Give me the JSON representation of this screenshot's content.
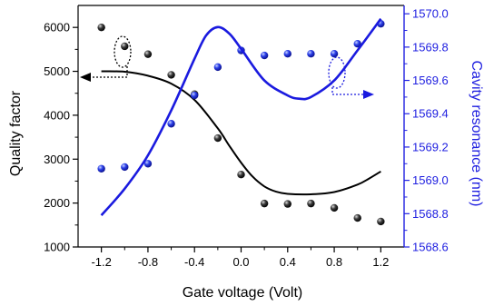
{
  "chart_data": {
    "type": "scatter",
    "xlabel": "Gate voltage (Volt)",
    "ylabel_left": "Quality factor",
    "ylabel_right": "Cavity resonance (nm)",
    "xlim": [
      -1.4,
      1.4
    ],
    "ylim_left": [
      1000,
      6500
    ],
    "ylim_right": [
      1568.6,
      1570.05
    ],
    "x_ticks": [
      "-1.2",
      "-0.8",
      "-0.4",
      "0.0",
      "0.4",
      "0.8",
      "1.2"
    ],
    "y_left_ticks": [
      "1000",
      "2000",
      "3000",
      "4000",
      "5000",
      "6000"
    ],
    "y_right_ticks": [
      "1568.6",
      "1568.8",
      "1569.0",
      "1569.2",
      "1569.4",
      "1569.6",
      "1569.8",
      "1570.0"
    ],
    "colors": {
      "left": "#000000",
      "right": "#1a1adf",
      "right_axis": "#2020e0"
    },
    "series": [
      {
        "axis": "left",
        "kind": "points",
        "x": [
          -1.2,
          -1.0,
          -0.8,
          -0.6,
          -0.4,
          -0.2,
          0.0,
          0.2,
          0.4,
          0.6,
          0.8,
          1.0,
          1.2
        ],
        "y": [
          6000,
          5570,
          5390,
          4920,
          4480,
          3480,
          2650,
          1990,
          1980,
          1990,
          1890,
          1660,
          1580
        ]
      },
      {
        "axis": "left",
        "kind": "fit",
        "x": [
          -1.2,
          -1.0,
          -0.8,
          -0.6,
          -0.4,
          -0.2,
          -0.1,
          0.0,
          0.1,
          0.2,
          0.3,
          0.4,
          0.6,
          0.8,
          1.0,
          1.1,
          1.2
        ],
        "y": [
          5000,
          4990,
          4900,
          4720,
          4350,
          3700,
          3300,
          2920,
          2600,
          2380,
          2260,
          2210,
          2200,
          2250,
          2420,
          2560,
          2720
        ]
      },
      {
        "axis": "right",
        "kind": "points",
        "x": [
          -1.2,
          -1.0,
          -0.8,
          -0.6,
          -0.4,
          -0.2,
          0.0,
          0.2,
          0.4,
          0.6,
          0.8,
          1.0,
          1.2
        ],
        "y": [
          1569.07,
          1569.08,
          1569.1,
          1569.34,
          1569.51,
          1569.68,
          1569.78,
          1569.75,
          1569.76,
          1569.76,
          1569.76,
          1569.82,
          1569.94
        ]
      },
      {
        "axis": "right",
        "kind": "fit",
        "x": [
          -1.2,
          -1.0,
          -0.8,
          -0.6,
          -0.4,
          -0.3,
          -0.2,
          -0.1,
          0.0,
          0.2,
          0.4,
          0.5,
          0.6,
          0.8,
          1.0,
          1.2
        ],
        "y": [
          1568.79,
          1568.95,
          1569.15,
          1569.42,
          1569.73,
          1569.87,
          1569.92,
          1569.88,
          1569.79,
          1569.6,
          1569.51,
          1569.49,
          1569.5,
          1569.6,
          1569.78,
          1569.97
        ]
      }
    ]
  }
}
